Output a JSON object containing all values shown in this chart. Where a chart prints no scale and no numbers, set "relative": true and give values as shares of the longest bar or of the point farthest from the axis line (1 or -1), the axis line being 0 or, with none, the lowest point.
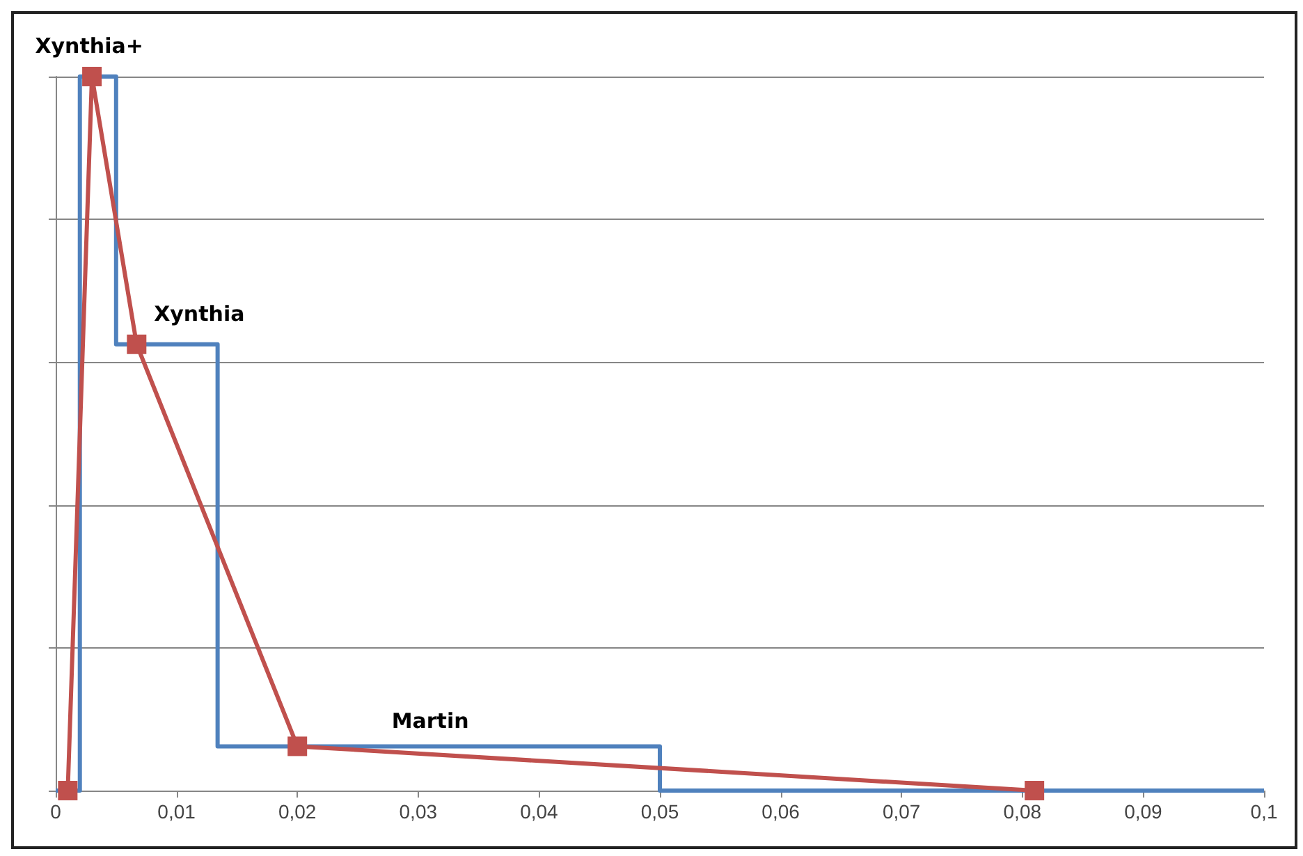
{
  "chart_data": {
    "type": "line",
    "relative": true,
    "grid": "y",
    "xlim": [
      0,
      0.1
    ],
    "xticks": [
      0,
      {
        "value": 0.01,
        "label": "0,01"
      },
      {
        "value": 0.02,
        "label": "0,02"
      },
      {
        "value": 0.03,
        "label": "0,03"
      },
      {
        "value": 0.04,
        "label": "0,04"
      },
      {
        "value": 0.05,
        "label": "0,05"
      },
      {
        "value": 0.06,
        "label": "0,06"
      },
      {
        "value": 0.07,
        "label": "0,07"
      },
      {
        "value": 0.08,
        "label": "0,08"
      },
      {
        "value": 0.09,
        "label": "0,09"
      },
      {
        "value": 0.1,
        "label": "0,1"
      }
    ],
    "series": [
      {
        "type": "step",
        "color": "#4f81bd",
        "marker": "none",
        "x": [
          0,
          0.002,
          0.005,
          0.0134,
          0.05,
          0.1
        ],
        "values": [
          0,
          1,
          0.625,
          0.062,
          0,
          0
        ]
      },
      {
        "color": "#c0504d",
        "marker": "square",
        "x": [
          0.001,
          0.003,
          0.0067,
          0.02,
          0.081
        ],
        "values": [
          0,
          1,
          0.625,
          0.062,
          0
        ]
      }
    ],
    "annotations": [
      {
        "text": "Xynthia+",
        "x": 0.003,
        "y": 1
      },
      {
        "text": "Xynthia",
        "x": 0.0067,
        "y": 0.625
      },
      {
        "text": "Martin",
        "x": 0.031,
        "y": 0.062
      }
    ]
  }
}
